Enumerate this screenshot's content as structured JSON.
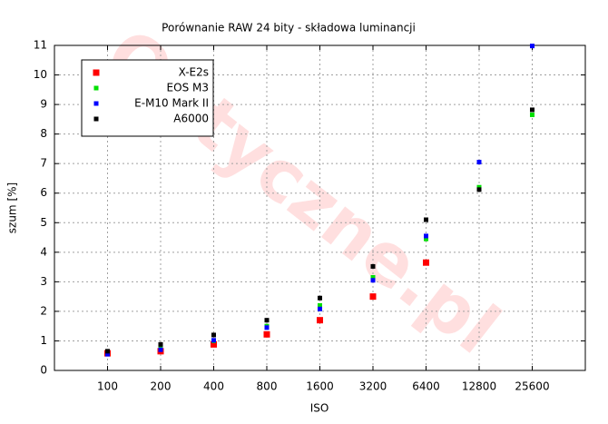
{
  "chart_data": {
    "type": "scatter",
    "title": "Porównanie RAW 24 bity - składowa luminancji",
    "x_label": "ISO",
    "y_label": "szum [%]",
    "watermark": "Optyczne.pl",
    "categories": [
      "100",
      "200",
      "400",
      "800",
      "1600",
      "3200",
      "6400",
      "12800",
      "25600"
    ],
    "series": [
      {
        "name": "X-E2s",
        "color": "#ff0000",
        "values": [
          0.58,
          0.65,
          0.88,
          1.22,
          1.7,
          2.5,
          3.65,
          null,
          null
        ]
      },
      {
        "name": "EOS M3",
        "color": "#00e000",
        "values": [
          0.6,
          0.75,
          1.0,
          1.5,
          2.2,
          3.15,
          4.45,
          6.2,
          8.65
        ]
      },
      {
        "name": "E-M10 Mark II",
        "color": "#0000ff",
        "values": [
          0.55,
          0.7,
          1.02,
          1.45,
          2.08,
          3.05,
          4.55,
          7.05,
          10.98
        ]
      },
      {
        "name": "A6000",
        "color": "#000000",
        "values": [
          0.65,
          0.88,
          1.2,
          1.7,
          2.45,
          3.52,
          5.1,
          6.12,
          8.82
        ]
      }
    ],
    "ylim": [
      0,
      11
    ],
    "yticks": [
      0,
      1,
      2,
      3,
      4,
      5,
      6,
      7,
      8,
      9,
      10,
      11
    ],
    "grid": true,
    "legend": "top-left"
  }
}
